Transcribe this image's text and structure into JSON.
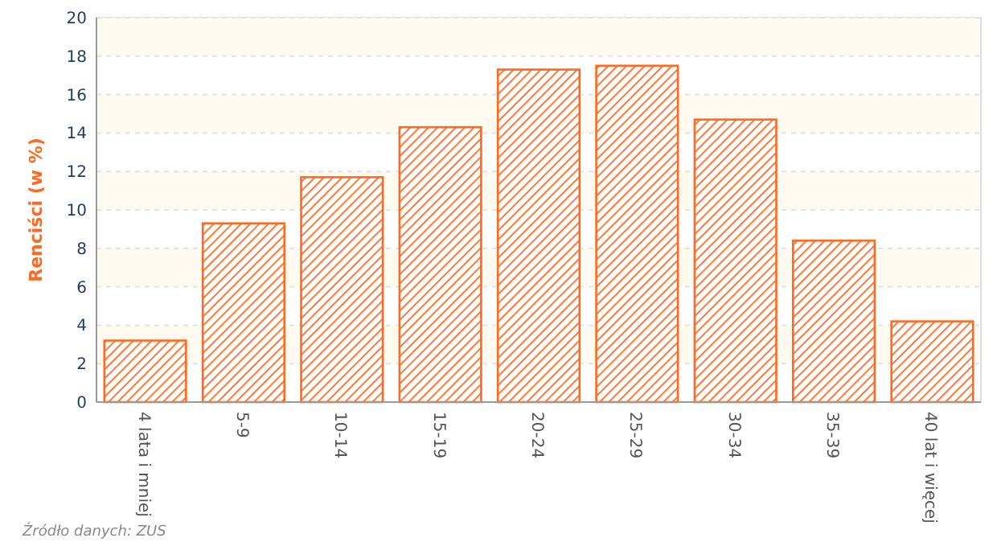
{
  "chart_data": {
    "type": "bar",
    "ylabel": "Renciści (w %)",
    "categories": [
      "4 lata i mniej",
      "5-9",
      "10-14",
      "15-19",
      "20-24",
      "25-29",
      "30-34",
      "35-39",
      "40 lat i więcej"
    ],
    "values": [
      3.2,
      9.3,
      11.7,
      14.3,
      17.3,
      17.5,
      14.7,
      8.4,
      4.2
    ],
    "color": "#ff6a22",
    "ylim": [
      0,
      20
    ],
    "yticks": [
      0,
      2,
      4,
      6,
      8,
      10,
      12,
      14,
      16,
      18,
      20
    ],
    "grid": "y",
    "annotations": [
      "Źródło danych: ZUS"
    ]
  }
}
